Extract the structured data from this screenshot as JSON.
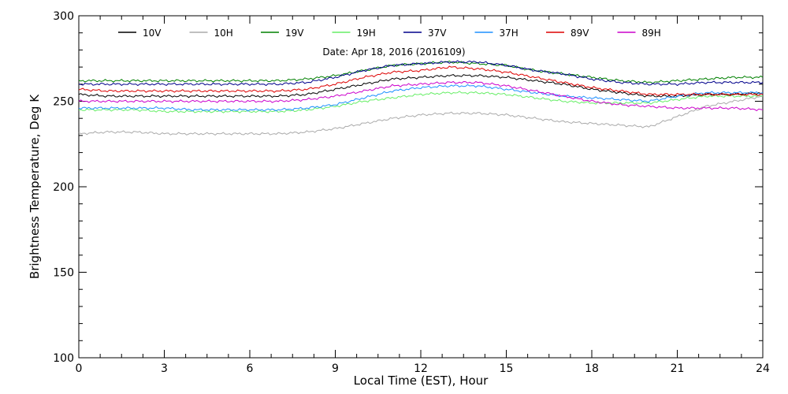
{
  "chart_data": {
    "type": "line",
    "title": "",
    "annotation": "Date: Apr 18, 2016 (2016109)",
    "xlabel": "Local Time (EST), Hour",
    "ylabel": "Brightness Temperature, Deg K",
    "xlim": [
      0,
      24
    ],
    "ylim": [
      100,
      300
    ],
    "xticks": [
      0,
      3,
      6,
      9,
      12,
      15,
      18,
      21,
      24
    ],
    "yticks": [
      100,
      150,
      200,
      250,
      300
    ],
    "grid": false,
    "legend_position": "top",
    "x": [
      0,
      1,
      2,
      3,
      4,
      5,
      6,
      7,
      8,
      9,
      10,
      11,
      12,
      13,
      14,
      15,
      16,
      17,
      18,
      19,
      20,
      21,
      22,
      23,
      24
    ],
    "series": [
      {
        "name": "10V",
        "color": "#000000",
        "values": [
          254,
          253,
          253,
          253,
          253,
          253,
          253,
          253,
          254,
          257,
          260,
          263,
          264,
          265,
          265,
          264,
          262,
          260,
          257,
          255,
          253,
          253,
          254,
          254,
          255
        ]
      },
      {
        "name": "10H",
        "color": "#aaaaaa",
        "values": [
          231,
          232,
          232,
          231,
          231,
          231,
          231,
          231,
          232,
          234,
          237,
          240,
          242,
          243,
          243,
          242,
          240,
          238,
          237,
          236,
          235,
          241,
          247,
          250,
          253
        ]
      },
      {
        "name": "19V",
        "color": "#008000",
        "values": [
          262,
          262,
          262,
          262,
          262,
          262,
          262,
          262,
          263,
          265,
          268,
          271,
          272,
          273,
          272,
          271,
          268,
          266,
          264,
          262,
          261,
          262,
          263,
          264,
          264
        ]
      },
      {
        "name": "19H",
        "color": "#66ee66",
        "values": [
          245,
          245,
          245,
          244,
          244,
          244,
          244,
          244,
          245,
          247,
          250,
          252,
          254,
          255,
          255,
          254,
          252,
          250,
          249,
          249,
          249,
          251,
          253,
          253,
          253
        ]
      },
      {
        "name": "37V",
        "color": "#00008b",
        "values": [
          260,
          260,
          260,
          260,
          260,
          260,
          260,
          260,
          261,
          264,
          268,
          271,
          272,
          273,
          273,
          271,
          268,
          266,
          263,
          261,
          260,
          260,
          261,
          261,
          261
        ]
      },
      {
        "name": "37H",
        "color": "#1e90ff",
        "values": [
          246,
          246,
          246,
          246,
          245,
          245,
          245,
          245,
          246,
          248,
          252,
          256,
          258,
          259,
          259,
          257,
          255,
          253,
          252,
          251,
          250,
          253,
          255,
          255,
          255
        ]
      },
      {
        "name": "89V",
        "color": "#dd0000",
        "values": [
          257,
          256,
          256,
          256,
          256,
          256,
          256,
          256,
          257,
          260,
          264,
          267,
          268,
          270,
          269,
          267,
          264,
          261,
          258,
          256,
          254,
          254,
          254,
          254,
          254
        ]
      },
      {
        "name": "89H",
        "color": "#cc00cc",
        "values": [
          250,
          250,
          250,
          250,
          250,
          250,
          250,
          250,
          251,
          253,
          256,
          259,
          260,
          261,
          261,
          259,
          256,
          253,
          250,
          248,
          247,
          246,
          246,
          246,
          245
        ]
      }
    ]
  }
}
